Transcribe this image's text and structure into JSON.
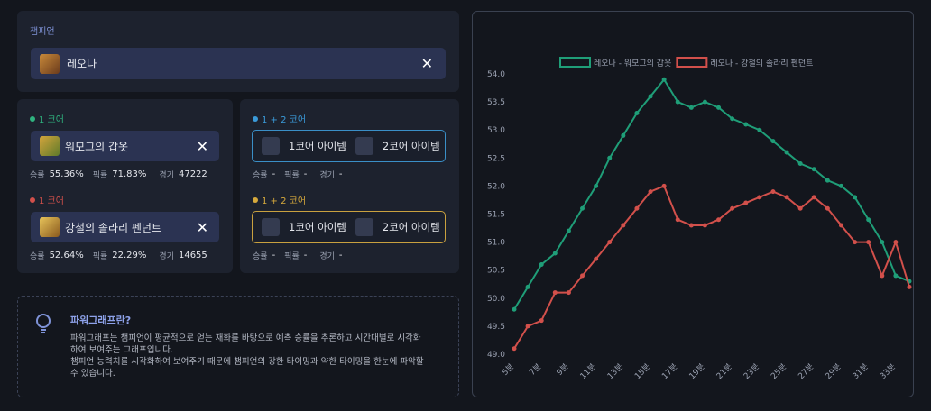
{
  "champion_panel": {
    "label": "챔피언",
    "name": "레오나"
  },
  "item_panels": [
    {
      "label": "1 코어",
      "item": "워모그의 갑옷",
      "stats": [
        {
          "label": "승률",
          "value": "55.36%"
        },
        {
          "label": "픽률",
          "value": "71.83%"
        },
        {
          "label": "경기",
          "value": "47222"
        }
      ]
    },
    {
      "label": "1 코어",
      "item": "강철의 솔라리 펜던트",
      "stats": [
        {
          "label": "승률",
          "value": "52.64%"
        },
        {
          "label": "픽률",
          "value": "22.29%"
        },
        {
          "label": "경기",
          "value": "14655"
        }
      ]
    }
  ],
  "combo_panels": [
    {
      "label": "1 + 2 코어",
      "slots": [
        "1코어 아이템",
        "2코어 아이템"
      ],
      "stats": [
        {
          "label": "승률",
          "value": "-"
        },
        {
          "label": "픽률",
          "value": "-"
        },
        {
          "label": "경기",
          "value": "-"
        }
      ]
    },
    {
      "label": "1 + 2 코어",
      "slots": [
        "1코어 아이템",
        "2코어 아이템"
      ],
      "stats": [
        {
          "label": "승률",
          "value": "-"
        },
        {
          "label": "픽률",
          "value": "-"
        },
        {
          "label": "경기",
          "value": "-"
        }
      ]
    }
  ],
  "info": {
    "title": "파워그래프란?",
    "lines": [
      "파워그래프는 챔피언이 평균적으로 얻는 재화를 바탕으로 예측 승률을 추론하고 시간대별로 시각화",
      "하여 보여주는 그래프입니다.",
      "챔피언 능력치를 시각화하여 보여주기 때문에 챔피언의 강한 타이밍과 약한 타이밍을 한눈에 파악할",
      "수 있습니다."
    ]
  },
  "chart_data": {
    "type": "line",
    "categories": [
      "5분",
      null,
      "7분",
      null,
      "9분",
      null,
      "11분",
      null,
      "13분",
      null,
      "15분",
      null,
      "17분",
      null,
      "19분",
      null,
      "21분",
      null,
      "23분",
      null,
      "25분",
      null,
      "27분",
      null,
      "29분",
      null,
      "31분",
      null,
      "33분",
      null
    ],
    "series": [
      {
        "name": "레오나 - 워모그의 갑옷",
        "color": "#1f9e78",
        "values": [
          49.8,
          50.2,
          50.6,
          50.8,
          51.2,
          51.6,
          52.0,
          52.5,
          52.9,
          53.3,
          53.6,
          53.9,
          53.5,
          53.4,
          53.5,
          53.4,
          53.2,
          53.1,
          53.0,
          52.8,
          52.6,
          52.4,
          52.3,
          52.1,
          52.0,
          51.8,
          51.4,
          51.0,
          50.4,
          50.3
        ]
      },
      {
        "name": "레오나 - 강철의 솔라리 펜던트",
        "color": "#d2504b",
        "values": [
          49.1,
          49.5,
          49.6,
          50.1,
          50.1,
          50.4,
          50.7,
          51.0,
          51.3,
          51.6,
          51.9,
          52.0,
          51.4,
          51.3,
          51.3,
          51.4,
          51.6,
          51.7,
          51.8,
          51.9,
          51.8,
          51.6,
          51.8,
          51.6,
          51.3,
          51.0,
          51.0,
          50.4,
          51.0,
          50.2
        ]
      }
    ],
    "ylim": [
      49.0,
      54.0
    ],
    "yticks": [
      {
        "value": 49,
        "label": "49.0"
      },
      49.5,
      {
        "value": 50,
        "label": "50.0"
      },
      50.5,
      {
        "value": 51,
        "label": "51.0"
      },
      51.5,
      {
        "value": 52,
        "label": "52.0"
      },
      52.5,
      {
        "value": 53,
        "label": "53.0"
      },
      53.5,
      {
        "value": 54,
        "label": "54.0"
      }
    ],
    "grid": false,
    "legend": "top"
  }
}
